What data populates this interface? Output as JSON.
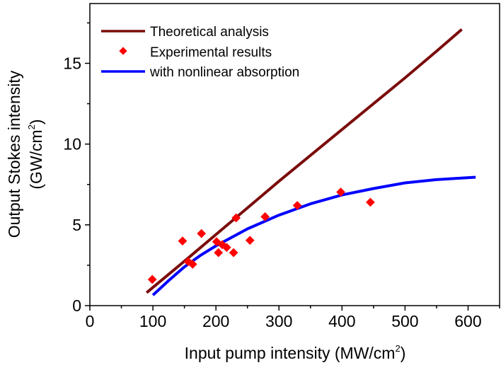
{
  "chart_data": {
    "type": "line",
    "title": "",
    "xlabel": "Input pump  intensity (MW/cm",
    "xlabel_sup": "2",
    "xlabel_end": ")",
    "ylabel_line1": "Output Stokes intensity",
    "ylabel_line2": "(GW/cm",
    "ylabel_sup": "2",
    "ylabel_end": ")",
    "xlim": [
      0,
      650
    ],
    "ylim": [
      0,
      18.7
    ],
    "xticks": [
      0,
      100,
      200,
      300,
      400,
      500,
      600
    ],
    "yticks": [
      0,
      5,
      10,
      15
    ],
    "grid": false,
    "legend_position": "top-left",
    "series": [
      {
        "name": "Theoretical analysis",
        "kind": "line",
        "color": "#7b0c0c",
        "x": [
          90,
          150,
          200,
          250,
          300,
          350,
          400,
          450,
          500,
          550,
          590
        ],
        "y": [
          0.8,
          2.75,
          4.4,
          6.05,
          7.7,
          9.3,
          10.9,
          12.5,
          14.1,
          15.75,
          17.1
        ]
      },
      {
        "name": "Experimental results",
        "kind": "scatter",
        "color": "#ff0000",
        "x": [
          99,
          147,
          177,
          156,
          163,
          201,
          204,
          210,
          217,
          228,
          232,
          254,
          278,
          329,
          398,
          445
        ],
        "y": [
          1.62,
          4.0,
          4.46,
          2.72,
          2.56,
          3.96,
          3.28,
          3.77,
          3.6,
          3.28,
          5.43,
          4.04,
          5.5,
          6.2,
          7.03,
          6.4
        ]
      },
      {
        "name": "with nonlinear absorption",
        "kind": "line",
        "color": "#0000ff",
        "x": [
          100,
          125,
          150,
          175,
          200,
          250,
          300,
          350,
          400,
          450,
          500,
          550,
          612
        ],
        "y": [
          0.65,
          1.55,
          2.4,
          3.1,
          3.7,
          4.75,
          5.6,
          6.3,
          6.85,
          7.25,
          7.6,
          7.8,
          7.95
        ]
      }
    ]
  }
}
